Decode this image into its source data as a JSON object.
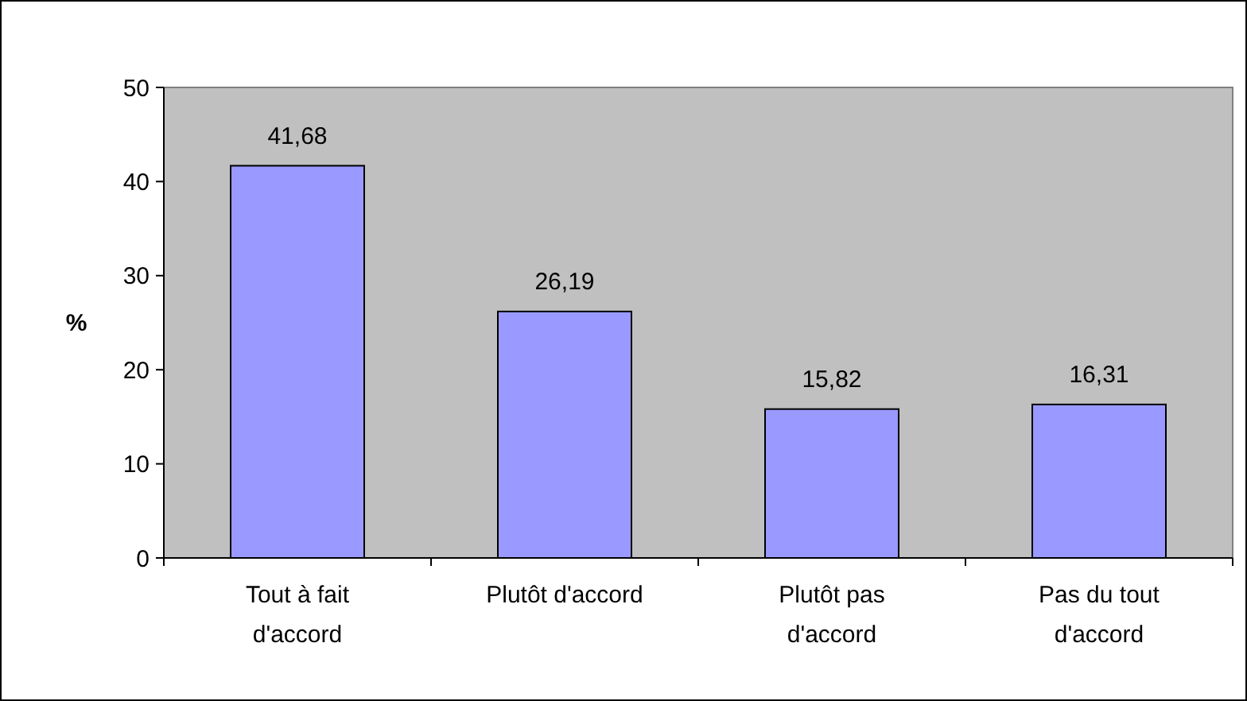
{
  "chart_data": {
    "type": "bar",
    "ylabel": "%",
    "categories": [
      "Tout à fait d'accord",
      "Plutôt d'accord",
      "Plutôt pas d'accord",
      "Pas du tout d'accord"
    ],
    "values": [
      41.68,
      26.19,
      15.82,
      16.31
    ],
    "value_labels": [
      "41,68",
      "26,19",
      "15,82",
      "16,31"
    ],
    "color": "#9999ff",
    "ylim": [
      0,
      50
    ],
    "yticks": [
      0,
      10,
      20,
      30,
      40,
      50
    ],
    "grid": false
  }
}
